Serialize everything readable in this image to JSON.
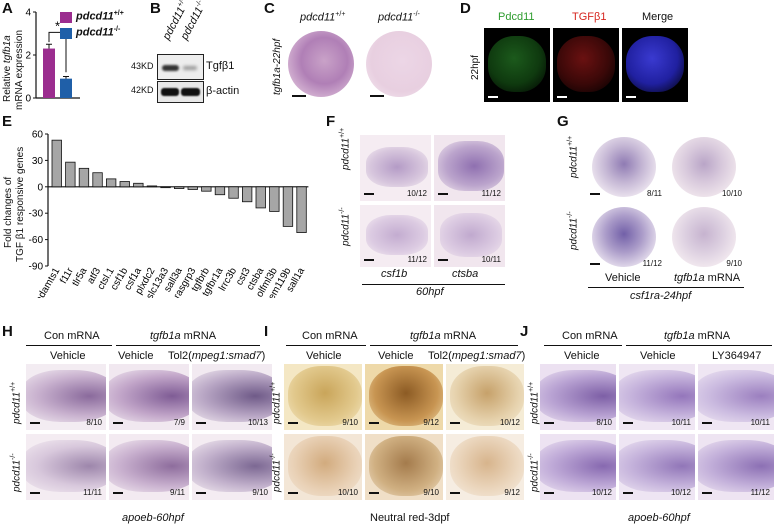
{
  "panels": {
    "A": "A",
    "B": "B",
    "C": "C",
    "D": "D",
    "E": "E",
    "F": "F",
    "G": "G",
    "H": "H",
    "I": "I",
    "J": "J"
  },
  "legend": {
    "wt": "pdcd11",
    "wt_sup": "+/+",
    "ko": "pdcd11",
    "ko_sup": "-/-"
  },
  "colors": {
    "wt": "#9b2d8f",
    "ko": "#1f5fa8",
    "bar_E": "#a6a6a6"
  },
  "panelA": {
    "ylabel_1": "Relative",
    "ylabel_gene": "tgfb1a",
    "ylabel_2": "mRNA expression",
    "ticks": [
      "0",
      "2",
      "4"
    ],
    "star": "*"
  },
  "panelB": {
    "col1": "pdcd11",
    "col1_sup": "+/+",
    "col2": "pdcd11",
    "col2_sup": "-/-",
    "kd1": "43KD",
    "kd2": "42KD",
    "band1": "Tgfβ1",
    "band2": "β-actin"
  },
  "panelC": {
    "col1": "pdcd11",
    "col1_sup": "+/+",
    "col2": "pdcd11",
    "col2_sup": "-/-",
    "row": "tgfb1a-22hpf"
  },
  "panelD": {
    "col1": "Pdcd11",
    "col2": "TGFβ1",
    "col3": "Merge",
    "row": "22hpf"
  },
  "panelE": {
    "ylabel_1": "Fold changes of",
    "ylabel_2": "TGF β1 responsive genes",
    "ticks": [
      "60",
      "30",
      "0",
      "-30",
      "-60",
      "-90"
    ]
  },
  "panelF": {
    "row1": "pdcd11",
    "row1_sup": "+/+",
    "row2": "pdcd11",
    "row2_sup": "-/-",
    "ratios": [
      "10/12",
      "11/12",
      "11/12",
      "10/11"
    ],
    "col1": "csf1b",
    "col2": "ctsba",
    "stage": "60hpf"
  },
  "panelG": {
    "row1": "pdcd11",
    "row1_sup": "+/+",
    "row2": "pdcd11",
    "row2_sup": "-/-",
    "ratios": [
      "8/11",
      "10/10",
      "11/12",
      "9/10"
    ],
    "col1": "Vehicle",
    "col2_gene": "tgfb1a",
    "col2_rest": " mRNA",
    "probe": "csf1ra-24hpf"
  },
  "panelH": {
    "con": "Con mRNA",
    "tgf_gene": "tgfb1a",
    "tgf_rest": " mRNA",
    "c1": "Vehicle",
    "c2": "Vehicle",
    "c3": "Tol2(",
    "c3_it": "mpeg1:smad7",
    "c3_end": ")",
    "row1": "pdcd11",
    "row1_sup": "+/+",
    "row2": "pdcd11",
    "row2_sup": "-/-",
    "ratios": [
      "8/10",
      "7/9",
      "10/13",
      "11/11",
      "9/11",
      "9/10"
    ],
    "bottom": "apoeb-60hpf"
  },
  "panelI": {
    "con": "Con mRNA",
    "tgf_gene": "tgfb1a",
    "tgf_rest": " mRNA",
    "c1": "Vehicle",
    "c2": "Vehicle",
    "c3": "Tol2(",
    "c3_it": "mpeg1:smad7",
    "c3_end": ")",
    "row1": "pdcd11",
    "row1_sup": "+/+",
    "row2": "pdcd11",
    "row2_sup": "-/-",
    "ratios": [
      "9/10",
      "9/12",
      "10/12",
      "10/10",
      "9/10",
      "9/12"
    ],
    "bottom": "Neutral red-3dpf"
  },
  "panelJ": {
    "con": "Con mRNA",
    "tgf_gene": "tgfb1a",
    "tgf_rest": " mRNA",
    "c1": "Vehicle",
    "c2": "Vehicle",
    "c3": "LY364947",
    "row1": "pdcd11",
    "row1_sup": "+/+",
    "row2": "pdcd11",
    "row2_sup": "-/-",
    "ratios": [
      "8/10",
      "10/11",
      "10/11",
      "10/12",
      "10/12",
      "11/12"
    ],
    "bottom": "apoeb-60hpf"
  },
  "chart_data": [
    {
      "type": "bar",
      "panel": "A",
      "categories": [
        "pdcd11 +/+",
        "pdcd11 -/-"
      ],
      "values": [
        2.3,
        0.9
      ],
      "errors": [
        0.2,
        0.1
      ],
      "ylabel": "Relative tgfb1a mRNA expression",
      "ylim": [
        0,
        4
      ],
      "annotation": "*"
    },
    {
      "type": "bar",
      "panel": "E",
      "categories": [
        "adamts1",
        "f11r",
        "tlr5a",
        "atf3",
        "ctsl.1",
        "csf1b",
        "csf1a",
        "plxdc2",
        "slc13a3",
        "sall3a",
        "rasgrp3",
        "tgfbrb",
        "tgfbr1a",
        "lrrc3b",
        "cst3",
        "ctsba",
        "olfml3b",
        "tmem119b",
        "sall1a"
      ],
      "values": [
        53,
        28,
        21,
        16,
        9,
        6,
        4,
        1,
        -1,
        -2,
        -3,
        -5,
        -9,
        -13,
        -17,
        -24,
        -28,
        -45,
        -52
      ],
      "ylabel": "Fold changes of TGF β1 responsive genes",
      "ylim": [
        -90,
        60
      ]
    }
  ]
}
